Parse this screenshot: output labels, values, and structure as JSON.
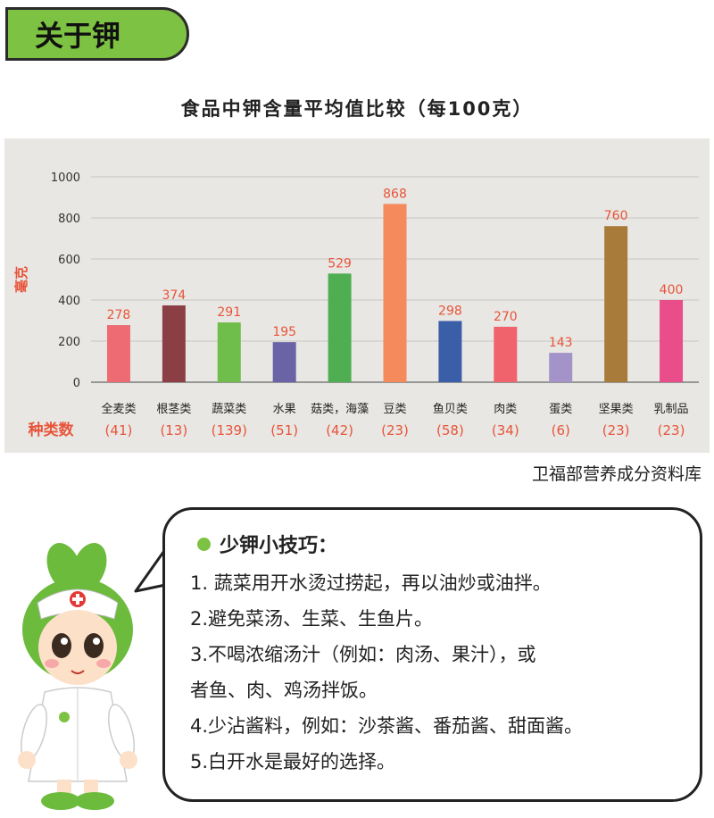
{
  "header": {
    "badge": "关于钾"
  },
  "chart_data": {
    "type": "bar",
    "title": "食品中钾含量平均值比较（每100克）",
    "ylabel": "毫克",
    "ylim": [
      0,
      1000
    ],
    "yticks": [
      0,
      200,
      400,
      600,
      800,
      1000
    ],
    "count_label": "种类数",
    "categories": [
      "全麦类",
      "根茎类",
      "蔬菜类",
      "水果",
      "菇类，海藻",
      "豆类",
      "鱼贝类",
      "肉类",
      "蛋类",
      "坚果类",
      "乳制品"
    ],
    "counts": [
      "(41)",
      "(13)",
      "(139)",
      "(51)",
      "(42)",
      "(23)",
      "(58)",
      "(34)",
      "(6)",
      "(23)",
      "(23)"
    ],
    "values": [
      278,
      374,
      291,
      195,
      529,
      868,
      298,
      270,
      143,
      760,
      400
    ],
    "colors": [
      "#ef6b73",
      "#8b3f45",
      "#6fbd4a",
      "#6a63a5",
      "#4fae52",
      "#f58a5c",
      "#3a5ea8",
      "#f0636c",
      "#a493c8",
      "#a87b3b",
      "#e94d8a"
    ],
    "label_color": "#e8543a"
  },
  "source": "卫福部营养成分资料库",
  "tips": {
    "heading": "少钾小技巧：",
    "items": [
      "1. 蔬菜用开水烫过捞起，再以油炒或油拌。",
      "2.避免菜汤、生菜、生鱼片。",
      "3.不喝浓缩汤汁（例如：肉汤、果汁），或",
      "者鱼、肉、鸡汤拌饭。",
      "4.少沾酱料，例如：沙茶酱、番茄酱、甜面酱。",
      "5.白开水是最好的选择。"
    ]
  },
  "colors": {
    "accent_green": "#7dc242",
    "panel_bg": "#e8e7e3"
  }
}
